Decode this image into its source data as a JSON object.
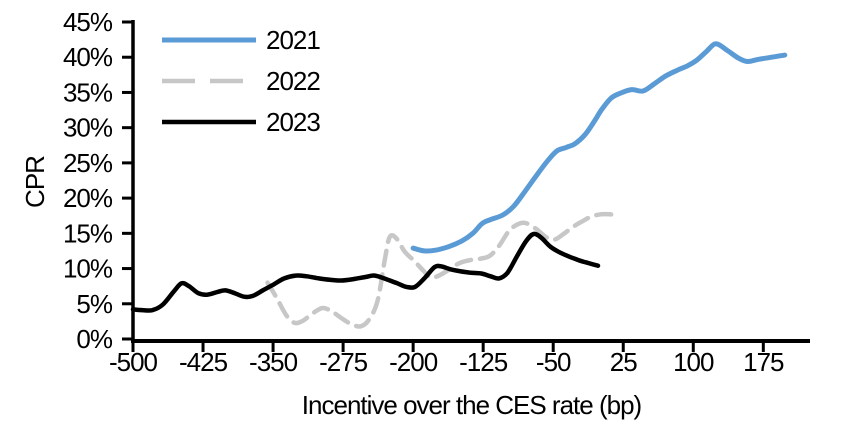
{
  "chart_data": {
    "type": "line",
    "title": "",
    "xlabel": "Incentive over the CES rate (bp)",
    "ylabel": "CPR",
    "xlim": [
      -500,
      225
    ],
    "ylim": [
      0,
      45
    ],
    "x_ticks": [
      -500,
      -425,
      -350,
      -275,
      -200,
      -125,
      -50,
      25,
      100,
      175
    ],
    "y_ticks": [
      0,
      5,
      10,
      15,
      20,
      25,
      30,
      35,
      40,
      45
    ],
    "y_tick_suffix": "%",
    "grid": false,
    "legend_position": "top-left-inside",
    "axis_color": "#000000",
    "series": [
      {
        "name": "2021",
        "color": "#5B9BD5",
        "dash": "solid",
        "width": 5,
        "points": [
          [
            -200,
            12.9
          ],
          [
            -188,
            12.5
          ],
          [
            -176,
            12.6
          ],
          [
            -162,
            13.1
          ],
          [
            -148,
            13.9
          ],
          [
            -136,
            15.0
          ],
          [
            -126,
            16.4
          ],
          [
            -116,
            17.0
          ],
          [
            -104,
            17.6
          ],
          [
            -92,
            18.9
          ],
          [
            -80,
            21.0
          ],
          [
            -68,
            23.2
          ],
          [
            -56,
            25.3
          ],
          [
            -46,
            26.7
          ],
          [
            -36,
            27.2
          ],
          [
            -27,
            27.7
          ],
          [
            -16,
            29.0
          ],
          [
            -6,
            30.9
          ],
          [
            2,
            32.6
          ],
          [
            12,
            34.2
          ],
          [
            22,
            34.9
          ],
          [
            34,
            35.4
          ],
          [
            46,
            35.2
          ],
          [
            58,
            36.2
          ],
          [
            70,
            37.3
          ],
          [
            82,
            38.1
          ],
          [
            94,
            38.8
          ],
          [
            104,
            39.6
          ],
          [
            114,
            40.8
          ],
          [
            124,
            41.9
          ],
          [
            136,
            41.0
          ],
          [
            148,
            39.9
          ],
          [
            158,
            39.4
          ],
          [
            170,
            39.7
          ],
          [
            184,
            40.0
          ],
          [
            198,
            40.3
          ]
        ]
      },
      {
        "name": "2022",
        "color": "#C7C7C7",
        "dash": "dashed",
        "width": 4.5,
        "points": [
          [
            -356,
            8.0
          ],
          [
            -346,
            5.8
          ],
          [
            -336,
            3.4
          ],
          [
            -327,
            2.3
          ],
          [
            -318,
            2.6
          ],
          [
            -308,
            3.6
          ],
          [
            -297,
            4.4
          ],
          [
            -287,
            3.9
          ],
          [
            -276,
            2.9
          ],
          [
            -266,
            2.1
          ],
          [
            -256,
            1.8
          ],
          [
            -247,
            2.8
          ],
          [
            -238,
            5.5
          ],
          [
            -230,
            11.5
          ],
          [
            -225,
            14.5
          ],
          [
            -218,
            14.3
          ],
          [
            -209,
            12.4
          ],
          [
            -199,
            11.1
          ],
          [
            -189,
            9.7
          ],
          [
            -181,
            8.7
          ],
          [
            -171,
            9.1
          ],
          [
            -161,
            9.9
          ],
          [
            -150,
            10.8
          ],
          [
            -139,
            11.2
          ],
          [
            -128,
            11.4
          ],
          [
            -118,
            11.8
          ],
          [
            -108,
            13.2
          ],
          [
            -97,
            15.4
          ],
          [
            -86,
            16.4
          ],
          [
            -78,
            16.4
          ],
          [
            -68,
            15.6
          ],
          [
            -58,
            14.5
          ],
          [
            -49,
            14.1
          ],
          [
            -39,
            14.9
          ],
          [
            -29,
            15.9
          ],
          [
            -19,
            16.7
          ],
          [
            -9,
            17.4
          ],
          [
            1,
            17.7
          ],
          [
            11,
            17.7
          ],
          [
            21,
            17.4
          ]
        ]
      },
      {
        "name": "2023",
        "color": "#000000",
        "dash": "solid",
        "width": 4.5,
        "points": [
          [
            -500,
            4.2
          ],
          [
            -490,
            4.1
          ],
          [
            -479,
            4.1
          ],
          [
            -468,
            4.9
          ],
          [
            -456,
            6.8
          ],
          [
            -448,
            7.9
          ],
          [
            -440,
            7.5
          ],
          [
            -430,
            6.5
          ],
          [
            -420,
            6.3
          ],
          [
            -409,
            6.7
          ],
          [
            -401,
            6.9
          ],
          [
            -391,
            6.5
          ],
          [
            -381,
            6.0
          ],
          [
            -372,
            6.1
          ],
          [
            -361,
            6.9
          ],
          [
            -350,
            7.7
          ],
          [
            -338,
            8.6
          ],
          [
            -326,
            9.0
          ],
          [
            -314,
            8.9
          ],
          [
            -301,
            8.6
          ],
          [
            -289,
            8.4
          ],
          [
            -277,
            8.3
          ],
          [
            -264,
            8.5
          ],
          [
            -251,
            8.8
          ],
          [
            -241,
            9.0
          ],
          [
            -229,
            8.5
          ],
          [
            -217,
            7.9
          ],
          [
            -207,
            7.4
          ],
          [
            -198,
            7.4
          ],
          [
            -188,
            8.6
          ],
          [
            -177,
            10.2
          ],
          [
            -170,
            10.3
          ],
          [
            -160,
            9.9
          ],
          [
            -149,
            9.6
          ],
          [
            -138,
            9.4
          ],
          [
            -127,
            9.3
          ],
          [
            -117,
            8.9
          ],
          [
            -108,
            8.6
          ],
          [
            -99,
            9.4
          ],
          [
            -89,
            11.7
          ],
          [
            -79,
            13.9
          ],
          [
            -71,
            14.9
          ],
          [
            -63,
            14.4
          ],
          [
            -53,
            13.1
          ],
          [
            -43,
            12.3
          ],
          [
            -33,
            11.7
          ],
          [
            -23,
            11.2
          ],
          [
            -13,
            10.8
          ],
          [
            -2,
            10.4
          ]
        ]
      }
    ]
  }
}
